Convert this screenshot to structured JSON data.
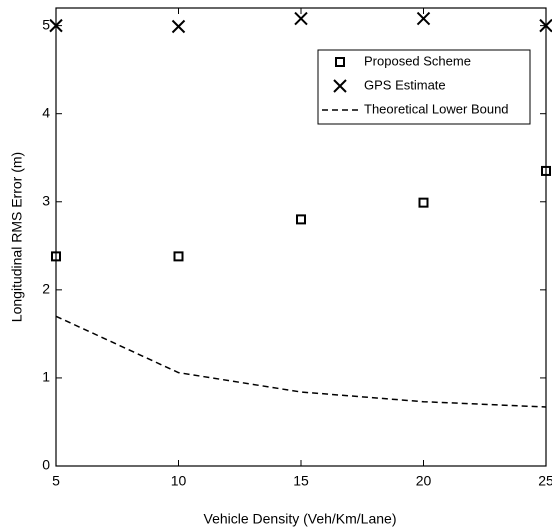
{
  "chart_data": {
    "type": "scatter",
    "xlabel": "Vehicle Density (Veh/Km/Lane)",
    "ylabel": "Longitudinal RMS Error (m)",
    "x": [
      5,
      10,
      15,
      20,
      25
    ],
    "series": [
      {
        "name": "Proposed Scheme",
        "color": "#000000",
        "marker": "square",
        "values": [
          2.38,
          2.38,
          2.8,
          2.99,
          3.35
        ]
      },
      {
        "name": "GPS Estimate",
        "color": "#000000",
        "marker": "x",
        "values": [
          5.0,
          4.99,
          5.08,
          5.08,
          5.0
        ]
      },
      {
        "name": "Theoretical Lower Bound",
        "color": "#000000",
        "line": "dashed",
        "values": [
          1.7,
          1.06,
          0.84,
          0.73,
          0.67
        ]
      }
    ],
    "xlim": [
      5,
      25
    ],
    "ylim": [
      0,
      5.2
    ],
    "xticks": [
      5,
      10,
      15,
      20,
      25
    ],
    "yticks": [
      0,
      1,
      2,
      3,
      4,
      5
    ],
    "legend": "upper right",
    "grid": false
  }
}
